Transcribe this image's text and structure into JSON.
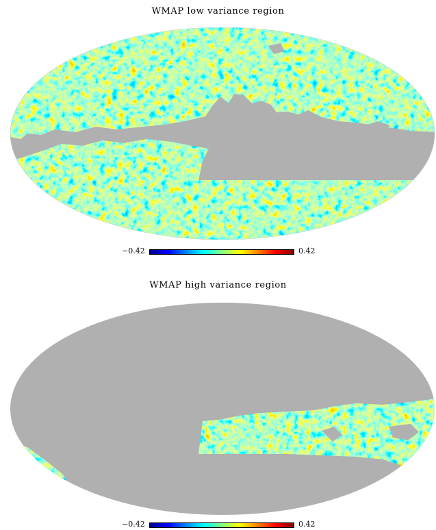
{
  "panels": [
    {
      "title": "WMAP low variance region",
      "colorbar": {
        "min_label": "−0.42",
        "max_label": "0.42",
        "min": -0.42,
        "max": 0.42
      },
      "mask_color": "#b0b0b0"
    },
    {
      "title": "WMAP high variance region",
      "colorbar": {
        "min_label": "−0.42",
        "max_label": "0.42",
        "min": -0.42,
        "max": 0.42
      },
      "mask_color": "#b0b0b0"
    }
  ],
  "colormap": [
    "#00008f",
    "#0000ff",
    "#0080ff",
    "#00ffff",
    "#80ff80",
    "#ffff00",
    "#ff8000",
    "#ff0000",
    "#800000"
  ]
}
